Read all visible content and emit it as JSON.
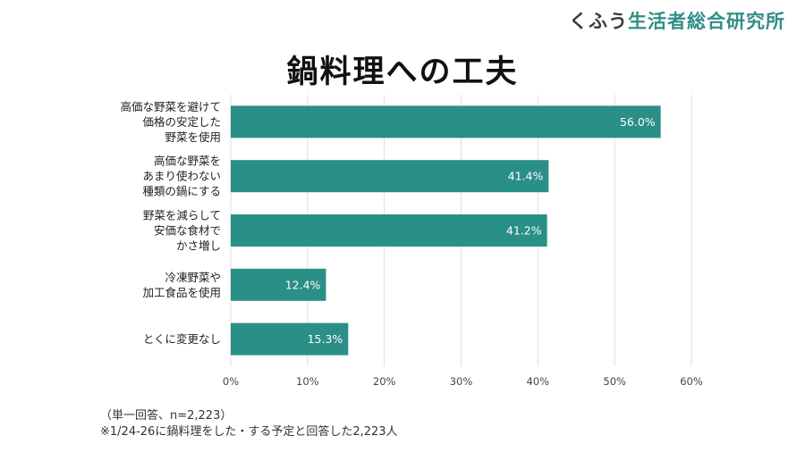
{
  "brand": {
    "kana": "くふう",
    "rest": "生活者総合研究所"
  },
  "colors": {
    "bar": "#2a8f86",
    "grid": "#dddddd",
    "brand": "#2f8f86"
  },
  "chart_data": {
    "type": "bar",
    "orientation": "horizontal",
    "title": "鍋料理への工夫",
    "categories": [
      [
        "高価な野菜を避けて",
        "価格の安定した",
        "野菜を使用"
      ],
      [
        "高価な野菜を",
        "あまり使わない",
        "種類の鍋にする"
      ],
      [
        "野菜を減らして",
        "安価な食材で",
        "かさ増し"
      ],
      [
        "冷凍野菜や",
        "加工食品を使用"
      ],
      [
        "とくに変更なし"
      ]
    ],
    "values": [
      56.0,
      41.4,
      41.2,
      12.4,
      15.3
    ],
    "value_labels": [
      "56.0%",
      "41.4%",
      "41.2%",
      "12.4%",
      "15.3%"
    ],
    "xlim": [
      0,
      60
    ],
    "xticks": [
      0,
      10,
      20,
      30,
      40,
      50,
      60
    ],
    "xtick_labels": [
      "0%",
      "10%",
      "20%",
      "30%",
      "40%",
      "50%",
      "60%"
    ],
    "grid": true
  },
  "notes": {
    "sample": "（単一回答、n=2,223）",
    "population": "※1/24-26に鍋料理をした・する予定と回答した2,223人"
  }
}
